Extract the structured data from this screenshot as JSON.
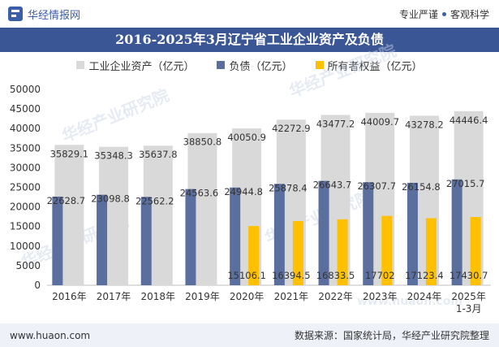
{
  "header": {
    "brand": "华经情报网",
    "slogan_left": "专业严谨",
    "slogan_right": "客观科学"
  },
  "title": "2016-2025年3月辽宁省工业企业资产及负债",
  "footer": {
    "site": "www.huaon.com",
    "source": "数据来源：国家统计局，华经产业研究院整理"
  },
  "watermarks": [
    "华经产业研究院",
    "www.huaon.com"
  ],
  "colors": {
    "assets": "#d9d9d9",
    "liabilities": "#5b6f9e",
    "equity": "#ffc000",
    "title_bg": "#3a5694"
  },
  "chart_data": {
    "type": "bar",
    "categories": [
      "2016年",
      "2017年",
      "2018年",
      "2019年",
      "2020年",
      "2021年",
      "2022年",
      "2023年",
      "2024年",
      "2025年\n1-3月"
    ],
    "series": [
      {
        "name": "工业企业资产（亿元）",
        "values": [
          35829.1,
          35348.3,
          35637.8,
          38850.8,
          40050.9,
          42272.9,
          43477.2,
          44009.7,
          43278.2,
          44446.4
        ]
      },
      {
        "name": "负债（亿元）",
        "values": [
          22628.7,
          23098.8,
          22562.2,
          24563.6,
          24944.8,
          25878.4,
          26643.7,
          26307.7,
          26154.8,
          27015.7
        ]
      },
      {
        "name": "所有者权益（亿元）",
        "values": [
          null,
          null,
          null,
          null,
          15106.1,
          16394.5,
          16833.5,
          17702,
          17123.4,
          17430.7
        ]
      }
    ],
    "value_labels": {
      "assets": [
        "35829.1",
        "35348.3",
        "35637.8",
        "38850.8",
        "40050.9",
        "42272.9",
        "43477.2",
        "44009.7",
        "43278.2",
        "44446.4"
      ],
      "liabilities": [
        "22628.7",
        "23098.8",
        "22562.2",
        "24563.6",
        "24944.8",
        "25878.4",
        "26643.7",
        "26307.7",
        "26154.8",
        "27015.7"
      ],
      "equity": [
        "",
        "",
        "",
        "",
        "15106.1",
        "16394.5",
        "16833.5",
        "17702",
        "17123.4",
        "17430.7"
      ]
    },
    "y_ticks": [
      "0",
      "5000",
      "10000",
      "15000",
      "20000",
      "25000",
      "30000",
      "35000",
      "40000",
      "45000",
      "50000"
    ],
    "ylim": [
      0,
      50000
    ],
    "grid": false,
    "legend_position": "top"
  }
}
